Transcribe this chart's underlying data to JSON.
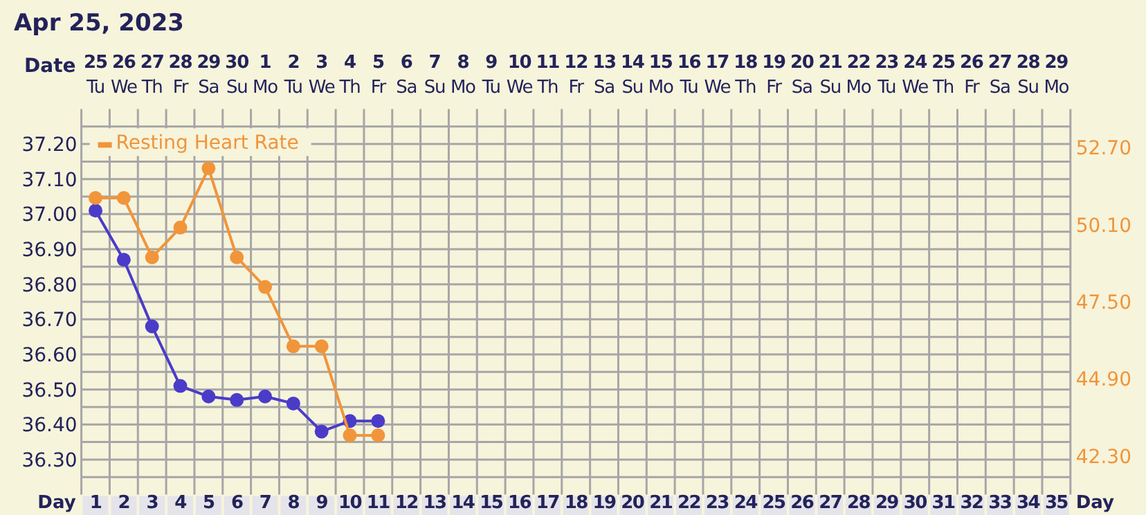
{
  "chart_data": {
    "type": "line",
    "title": "Apr 25, 2023",
    "xlabel": "Day",
    "x2label": "Date",
    "x": [
      1,
      2,
      3,
      4,
      5,
      6,
      7,
      8,
      9,
      10,
      11
    ],
    "xlim": [
      0.5,
      35.5
    ],
    "xticks": [
      1,
      2,
      3,
      4,
      5,
      6,
      7,
      8,
      9,
      10,
      11,
      12,
      13,
      14,
      15,
      16,
      17,
      18,
      19,
      20,
      21,
      22,
      23,
      24,
      25,
      26,
      27,
      28,
      29,
      30,
      31,
      32,
      33,
      34,
      35
    ],
    "x2lim": [
      "2023-04-24T12:00",
      "2023-05-29T12:00"
    ],
    "x2ticks": [
      {
        "value": "2023-04-25",
        "label": "25\nTu"
      },
      {
        "value": "2023-04-26",
        "label": "26\nWe"
      },
      {
        "value": "2023-04-27",
        "label": "27\nTh"
      },
      {
        "value": "2023-04-28",
        "label": "28\nFr"
      },
      {
        "value": "2023-04-29",
        "label": "29\nSa"
      },
      {
        "value": "2023-04-30",
        "label": "30\nSu"
      },
      {
        "value": "2023-05-01",
        "label": "1\nMo"
      },
      {
        "value": "2023-05-02",
        "label": "2\nTu"
      },
      {
        "value": "2023-05-03",
        "label": "3\nWe"
      },
      {
        "value": "2023-05-04",
        "label": "4\nTh"
      },
      {
        "value": "2023-05-05",
        "label": "5\nFr"
      },
      {
        "value": "2023-05-06",
        "label": "6\nSa"
      },
      {
        "value": "2023-05-07",
        "label": "7\nSu"
      },
      {
        "value": "2023-05-08",
        "label": "8\nMo"
      },
      {
        "value": "2023-05-09",
        "label": "9\nTu"
      },
      {
        "value": "2023-05-10",
        "label": "10\nWe"
      },
      {
        "value": "2023-05-11",
        "label": "11\nTh"
      },
      {
        "value": "2023-05-12",
        "label": "12\nFr"
      },
      {
        "value": "2023-05-13",
        "label": "13\nSa"
      },
      {
        "value": "2023-05-14",
        "label": "14\nSu"
      },
      {
        "value": "2023-05-15",
        "label": "15\nMo"
      },
      {
        "value": "2023-05-16",
        "label": "16\nTu"
      },
      {
        "value": "2023-05-17",
        "label": "17\nWe"
      },
      {
        "value": "2023-05-18",
        "label": "18\nTh"
      },
      {
        "value": "2023-05-19",
        "label": "19\nFr"
      },
      {
        "value": "2023-05-20",
        "label": "20\nSa"
      },
      {
        "value": "2023-05-21",
        "label": "21\nSu"
      },
      {
        "value": "2023-05-22",
        "label": "22\nMo"
      },
      {
        "value": "2023-05-23",
        "label": "23\nTu"
      },
      {
        "value": "2023-05-24",
        "label": "24\nWe"
      },
      {
        "value": "2023-05-25",
        "label": "25\nTh"
      },
      {
        "value": "2023-05-26",
        "label": "26\nFr"
      },
      {
        "value": "2023-05-27",
        "label": "27\nSa"
      },
      {
        "value": "2023-05-28",
        "label": "28\nSu"
      },
      {
        "value": "2023-05-29",
        "label": "29\nMo"
      }
    ],
    "ylim": [
      36.2,
      37.3
    ],
    "yticks": [
      {
        "value": 37.25,
        "label": null
      },
      {
        "value": 37.2,
        "label": "37.20"
      },
      {
        "value": 37.15,
        "label": null
      },
      {
        "value": 37.1,
        "label": "37.10"
      },
      {
        "value": 37.05,
        "label": null
      },
      {
        "value": 37.0,
        "label": "37.00"
      },
      {
        "value": 36.95,
        "label": null
      },
      {
        "value": 36.9,
        "label": "36.90"
      },
      {
        "value": 36.85,
        "label": null
      },
      {
        "value": 36.8,
        "label": "36.80"
      },
      {
        "value": 36.75,
        "label": null
      },
      {
        "value": 36.7,
        "label": "36.70"
      },
      {
        "value": 36.65,
        "label": null
      },
      {
        "value": 36.6,
        "label": "36.60"
      },
      {
        "value": 36.55,
        "label": null
      },
      {
        "value": 36.5,
        "label": "36.50"
      },
      {
        "value": 36.45,
        "label": null
      },
      {
        "value": 36.4,
        "label": "36.40"
      },
      {
        "value": 36.35,
        "label": null
      },
      {
        "value": 36.3,
        "label": "36.30"
      },
      {
        "value": 36.25,
        "label": null
      }
    ],
    "y2lim": [
      41,
      54
    ],
    "y2ticks": [
      {
        "value": 52.7,
        "label": "52.70"
      },
      {
        "value": 50.1,
        "label": "50.10"
      },
      {
        "value": 47.5,
        "label": "47.50"
      },
      {
        "value": 44.9,
        "label": "44.90"
      },
      {
        "value": 42.3,
        "label": "42.30"
      }
    ],
    "grid": true,
    "legend": "top left",
    "marker": "circle",
    "line_style": "solid",
    "series": [
      {
        "color": "#4a3cc8",
        "values": [
          37.01,
          36.87,
          36.68,
          36.51,
          36.48,
          36.47,
          36.48,
          36.46,
          36.38,
          36.41,
          36.41
        ]
      },
      {
        "name": "Resting Heart Rate",
        "color": "#f0953a",
        "axis": "y2",
        "values": [
          51,
          51,
          49,
          50,
          52,
          49,
          48,
          46,
          46,
          43,
          43
        ]
      }
    ]
  }
}
